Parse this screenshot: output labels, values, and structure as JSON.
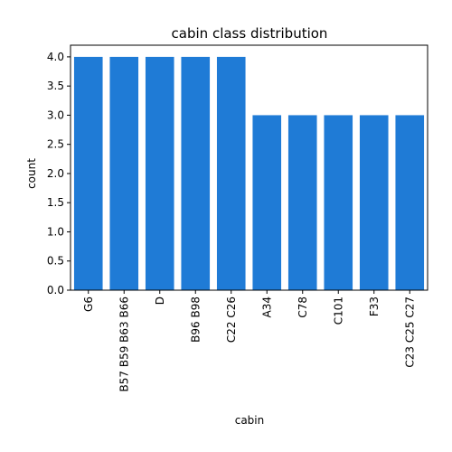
{
  "chart_data": {
    "type": "bar",
    "title": "cabin class distribution",
    "xlabel": "cabin",
    "ylabel": "count",
    "categories": [
      "G6",
      "B57 B59 B63 B66",
      "D",
      "B96 B98",
      "C22 C26",
      "A34",
      "C78",
      "C101",
      "F33",
      "C23 C25 C27"
    ],
    "values": [
      4,
      4,
      4,
      4,
      4,
      3,
      3,
      3,
      3,
      3
    ],
    "ylim": [
      0,
      4.2
    ],
    "yticks": [
      "0.0",
      "0.5",
      "1.0",
      "1.5",
      "2.0",
      "2.5",
      "3.0",
      "3.5",
      "4.0"
    ],
    "grid": false,
    "bar_color": "#1f7bd6",
    "x_tick_rotation": "vertical"
  }
}
